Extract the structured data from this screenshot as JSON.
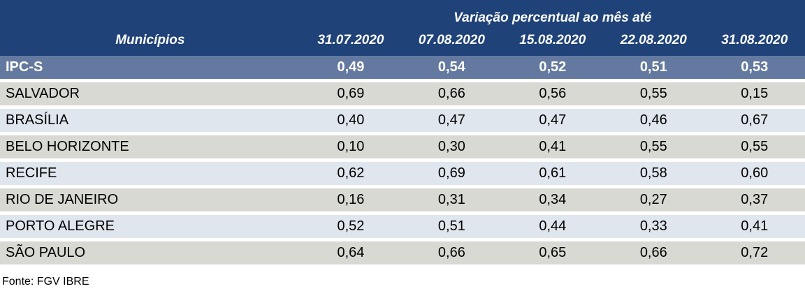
{
  "table": {
    "title": "Variação percentual ao mês até",
    "municipios_header": "Municípios",
    "date_headers": [
      "31.07.2020",
      "07.08.2020",
      "15.08.2020",
      "22.08.2020",
      "31.08.2020"
    ],
    "highlight_row": {
      "label": "IPC-S",
      "values": [
        "0,49",
        "0,54",
        "0,52",
        "0,51",
        "0,53"
      ]
    },
    "rows": [
      {
        "label": "SALVADOR",
        "values": [
          "0,69",
          "0,66",
          "0,56",
          "0,55",
          "0,15"
        ]
      },
      {
        "label": "BRASÍLIA",
        "values": [
          "0,40",
          "0,47",
          "0,47",
          "0,46",
          "0,67"
        ]
      },
      {
        "label": "BELO HORIZONTE",
        "values": [
          "0,10",
          "0,30",
          "0,41",
          "0,55",
          "0,55"
        ]
      },
      {
        "label": "RECIFE",
        "values": [
          "0,62",
          "0,69",
          "0,61",
          "0,58",
          "0,60"
        ]
      },
      {
        "label": "RIO DE JANEIRO",
        "values": [
          "0,16",
          "0,31",
          "0,34",
          "0,27",
          "0,37"
        ]
      },
      {
        "label": "PORTO ALEGRE",
        "values": [
          "0,52",
          "0,51",
          "0,44",
          "0,33",
          "0,41"
        ]
      },
      {
        "label": "SÃO PAULO",
        "values": [
          "0,64",
          "0,66",
          "0,65",
          "0,66",
          "0,72"
        ]
      }
    ],
    "footer": "Fonte: FGV IBRE",
    "colors": {
      "header_bg": "#1F4278",
      "highlight_bg": "#64799F",
      "row_gray": "#D9D9D4",
      "row_blue": "#DFE6EE",
      "header_text": "#FFFFFF",
      "body_text": "#000000"
    }
  },
  "chart_data": {
    "type": "table",
    "title": "Variação percentual ao mês até",
    "row_header_label": "Municípios",
    "columns": [
      "31.07.2020",
      "07.08.2020",
      "15.08.2020",
      "22.08.2020",
      "31.08.2020"
    ],
    "rows": [
      {
        "label": "IPC-S",
        "values": [
          0.49,
          0.54,
          0.52,
          0.51,
          0.53
        ],
        "highlight": true
      },
      {
        "label": "SALVADOR",
        "values": [
          0.69,
          0.66,
          0.56,
          0.55,
          0.15
        ]
      },
      {
        "label": "BRASÍLIA",
        "values": [
          0.4,
          0.47,
          0.47,
          0.46,
          0.67
        ]
      },
      {
        "label": "BELO HORIZONTE",
        "values": [
          0.1,
          0.3,
          0.41,
          0.55,
          0.55
        ]
      },
      {
        "label": "RECIFE",
        "values": [
          0.62,
          0.69,
          0.61,
          0.58,
          0.6
        ]
      },
      {
        "label": "RIO DE JANEIRO",
        "values": [
          0.16,
          0.31,
          0.34,
          0.27,
          0.37
        ]
      },
      {
        "label": "PORTO ALEGRE",
        "values": [
          0.52,
          0.51,
          0.44,
          0.33,
          0.41
        ]
      },
      {
        "label": "SÃO PAULO",
        "values": [
          0.64,
          0.66,
          0.65,
          0.66,
          0.72
        ]
      }
    ],
    "source": "Fonte: FGV IBRE",
    "number_format": "comma-decimal",
    "notes": "IPC-S weekly consumer price index variation by municipality; decimals use comma separator"
  }
}
